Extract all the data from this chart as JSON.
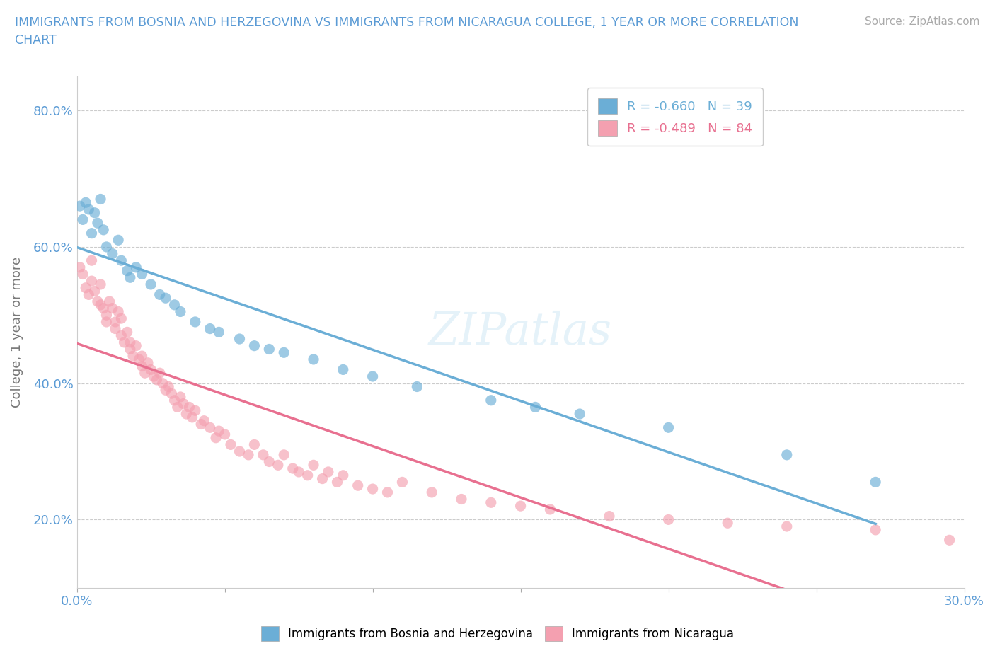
{
  "title": "IMMIGRANTS FROM BOSNIA AND HERZEGOVINA VS IMMIGRANTS FROM NICARAGUA COLLEGE, 1 YEAR OR MORE CORRELATION\nCHART",
  "source": "Source: ZipAtlas.com",
  "ylabel": "College, 1 year or more",
  "xlim": [
    0.0,
    0.3
  ],
  "ylim": [
    0.1,
    0.85
  ],
  "yticks": [
    0.2,
    0.4,
    0.6,
    0.8
  ],
  "ytick_labels": [
    "20.0%",
    "40.0%",
    "60.0%",
    "80.0%"
  ],
  "xticks": [
    0.0,
    0.05,
    0.1,
    0.15,
    0.2,
    0.25,
    0.3
  ],
  "xtick_labels": [
    "0.0%",
    "",
    "",
    "",
    "",
    "",
    "30.0%"
  ],
  "color_bosnia": "#6baed6",
  "color_nicaragua": "#f4a0b0",
  "color_nicaragua_line": "#e87090",
  "R_bosnia": -0.66,
  "N_bosnia": 39,
  "R_nicaragua": -0.489,
  "N_nicaragua": 84,
  "bosnia_x": [
    0.001,
    0.002,
    0.003,
    0.004,
    0.005,
    0.006,
    0.007,
    0.008,
    0.009,
    0.01,
    0.012,
    0.014,
    0.015,
    0.017,
    0.018,
    0.02,
    0.022,
    0.025,
    0.028,
    0.03,
    0.033,
    0.035,
    0.04,
    0.045,
    0.048,
    0.055,
    0.06,
    0.065,
    0.07,
    0.08,
    0.09,
    0.1,
    0.115,
    0.14,
    0.155,
    0.17,
    0.2,
    0.24,
    0.27
  ],
  "bosnia_y": [
    0.66,
    0.64,
    0.665,
    0.655,
    0.62,
    0.65,
    0.635,
    0.67,
    0.625,
    0.6,
    0.59,
    0.61,
    0.58,
    0.565,
    0.555,
    0.57,
    0.56,
    0.545,
    0.53,
    0.525,
    0.515,
    0.505,
    0.49,
    0.48,
    0.475,
    0.465,
    0.455,
    0.45,
    0.445,
    0.435,
    0.42,
    0.41,
    0.395,
    0.375,
    0.365,
    0.355,
    0.335,
    0.295,
    0.255
  ],
  "nicaragua_x": [
    0.001,
    0.002,
    0.003,
    0.004,
    0.005,
    0.005,
    0.006,
    0.007,
    0.008,
    0.008,
    0.009,
    0.01,
    0.01,
    0.011,
    0.012,
    0.013,
    0.013,
    0.014,
    0.015,
    0.015,
    0.016,
    0.017,
    0.018,
    0.018,
    0.019,
    0.02,
    0.021,
    0.022,
    0.022,
    0.023,
    0.024,
    0.025,
    0.026,
    0.027,
    0.028,
    0.029,
    0.03,
    0.031,
    0.032,
    0.033,
    0.034,
    0.035,
    0.036,
    0.037,
    0.038,
    0.039,
    0.04,
    0.042,
    0.043,
    0.045,
    0.047,
    0.048,
    0.05,
    0.052,
    0.055,
    0.058,
    0.06,
    0.063,
    0.065,
    0.068,
    0.07,
    0.073,
    0.075,
    0.078,
    0.08,
    0.083,
    0.085,
    0.088,
    0.09,
    0.095,
    0.1,
    0.105,
    0.11,
    0.12,
    0.13,
    0.14,
    0.15,
    0.16,
    0.18,
    0.2,
    0.22,
    0.24,
    0.27,
    0.295
  ],
  "nicaragua_y": [
    0.57,
    0.56,
    0.54,
    0.53,
    0.58,
    0.55,
    0.535,
    0.52,
    0.545,
    0.515,
    0.51,
    0.5,
    0.49,
    0.52,
    0.51,
    0.49,
    0.48,
    0.505,
    0.495,
    0.47,
    0.46,
    0.475,
    0.46,
    0.45,
    0.44,
    0.455,
    0.435,
    0.44,
    0.425,
    0.415,
    0.43,
    0.42,
    0.41,
    0.405,
    0.415,
    0.4,
    0.39,
    0.395,
    0.385,
    0.375,
    0.365,
    0.38,
    0.37,
    0.355,
    0.365,
    0.35,
    0.36,
    0.34,
    0.345,
    0.335,
    0.32,
    0.33,
    0.325,
    0.31,
    0.3,
    0.295,
    0.31,
    0.295,
    0.285,
    0.28,
    0.295,
    0.275,
    0.27,
    0.265,
    0.28,
    0.26,
    0.27,
    0.255,
    0.265,
    0.25,
    0.245,
    0.24,
    0.255,
    0.24,
    0.23,
    0.225,
    0.22,
    0.215,
    0.205,
    0.2,
    0.195,
    0.19,
    0.185,
    0.17
  ]
}
